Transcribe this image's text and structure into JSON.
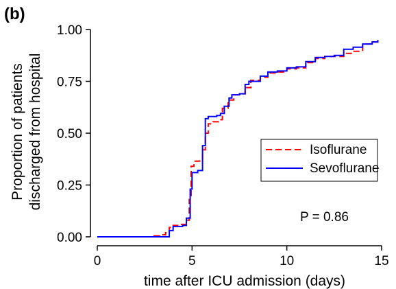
{
  "chart_data": {
    "type": "line",
    "panel_label": "(b)",
    "title": "",
    "xlabel": "time after ICU admission (days)",
    "ylabel": [
      "Proportion of patients",
      "discharged from hospital"
    ],
    "xlim": [
      0,
      15
    ],
    "ylim": [
      0,
      1
    ],
    "xticks": [
      0,
      5,
      10,
      15
    ],
    "xtick_labels": [
      "0",
      "5",
      "10",
      "15"
    ],
    "yticks": [
      0,
      0.25,
      0.5,
      0.75,
      1.0
    ],
    "ytick_labels": [
      "0.00",
      "0.25",
      "0.50",
      "0.75",
      "1.00"
    ],
    "grid": false,
    "legend_position": "right",
    "annotation": "P = 0.86",
    "step": true,
    "series": [
      {
        "name": "Isoflurane",
        "color": "#ff0000",
        "dash": "dashed",
        "points": [
          [
            0,
            0
          ],
          [
            2.8,
            0
          ],
          [
            3.0,
            0.005
          ],
          [
            3.3,
            0.01
          ],
          [
            3.6,
            0.02
          ],
          [
            3.8,
            0.045
          ],
          [
            4.0,
            0.055
          ],
          [
            4.4,
            0.06
          ],
          [
            4.7,
            0.08
          ],
          [
            4.85,
            0.18
          ],
          [
            4.95,
            0.34
          ],
          [
            5.1,
            0.365
          ],
          [
            5.4,
            0.37
          ],
          [
            5.55,
            0.42
          ],
          [
            5.7,
            0.5
          ],
          [
            5.85,
            0.545
          ],
          [
            6.1,
            0.555
          ],
          [
            6.4,
            0.565
          ],
          [
            6.6,
            0.62
          ],
          [
            6.9,
            0.66
          ],
          [
            7.2,
            0.685
          ],
          [
            7.5,
            0.69
          ],
          [
            7.8,
            0.72
          ],
          [
            8.1,
            0.755
          ],
          [
            8.6,
            0.77
          ],
          [
            9.0,
            0.79
          ],
          [
            9.5,
            0.795
          ],
          [
            10.0,
            0.81
          ],
          [
            10.5,
            0.815
          ],
          [
            11.0,
            0.84
          ],
          [
            11.5,
            0.86
          ],
          [
            12.0,
            0.87
          ],
          [
            12.5,
            0.87
          ],
          [
            13.0,
            0.885
          ],
          [
            13.5,
            0.895
          ],
          [
            14.0,
            0.93
          ],
          [
            14.5,
            0.94
          ],
          [
            14.8,
            0.945
          ]
        ]
      },
      {
        "name": "Sevoflurane",
        "color": "#0000ff",
        "dash": "solid",
        "points": [
          [
            0,
            0
          ],
          [
            3.6,
            0
          ],
          [
            3.8,
            0.03
          ],
          [
            4.0,
            0.05
          ],
          [
            4.5,
            0.055
          ],
          [
            4.7,
            0.09
          ],
          [
            4.9,
            0.23
          ],
          [
            5.0,
            0.31
          ],
          [
            5.3,
            0.32
          ],
          [
            5.55,
            0.44
          ],
          [
            5.7,
            0.57
          ],
          [
            5.85,
            0.58
          ],
          [
            6.3,
            0.585
          ],
          [
            6.5,
            0.595
          ],
          [
            6.7,
            0.63
          ],
          [
            6.95,
            0.67
          ],
          [
            7.1,
            0.685
          ],
          [
            7.5,
            0.69
          ],
          [
            7.8,
            0.735
          ],
          [
            8.0,
            0.75
          ],
          [
            8.6,
            0.775
          ],
          [
            9.0,
            0.795
          ],
          [
            9.5,
            0.8
          ],
          [
            10.0,
            0.815
          ],
          [
            10.5,
            0.82
          ],
          [
            11.0,
            0.845
          ],
          [
            11.5,
            0.865
          ],
          [
            12.0,
            0.87
          ],
          [
            12.5,
            0.875
          ],
          [
            13.0,
            0.905
          ],
          [
            13.5,
            0.915
          ],
          [
            14.0,
            0.93
          ],
          [
            14.5,
            0.94
          ],
          [
            14.8,
            0.95
          ]
        ]
      }
    ]
  }
}
